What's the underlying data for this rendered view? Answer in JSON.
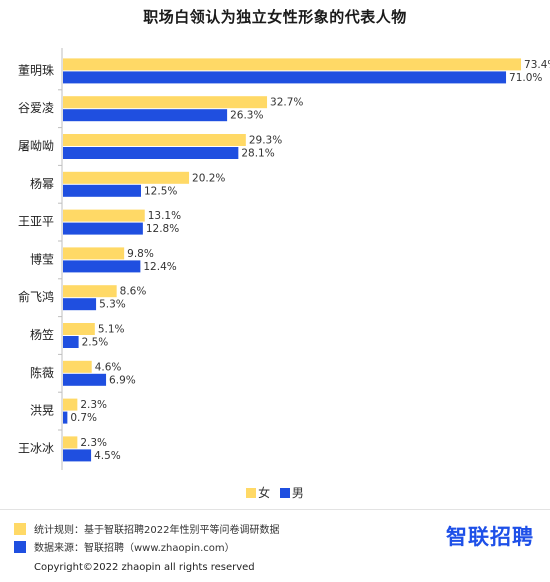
{
  "chart_data": {
    "type": "bar",
    "orientation": "horizontal",
    "title": "职场白领认为独立女性形象的代表人物",
    "categories": [
      "董明珠",
      "谷爱凌",
      "屠呦呦",
      "杨幂",
      "王亚平",
      "博莹",
      "俞飞鸿",
      "杨笠",
      "陈薇",
      "洪晃",
      "王冰冰"
    ],
    "series": [
      {
        "name": "女",
        "color": "#FFD966",
        "values": [
          73.4,
          32.7,
          29.3,
          20.2,
          13.1,
          9.8,
          8.6,
          5.1,
          4.6,
          2.3,
          2.3
        ]
      },
      {
        "name": "男",
        "color": "#1F4FE0",
        "values": [
          71.0,
          26.3,
          28.1,
          12.5,
          12.8,
          12.4,
          5.3,
          2.5,
          6.9,
          0.7,
          4.5
        ]
      }
    ],
    "value_format": "percent-1dp",
    "xlim": [
      0,
      75
    ],
    "grid": false,
    "legend": "bottom-center"
  },
  "notes": [
    {
      "label": "统计规则：基于智联招聘2022年性别平等问卷调研数据",
      "color": "#FFD966"
    },
    {
      "label": "数据来源：智联招聘（www.zhaopin.com）",
      "color": "#1F4FE0"
    }
  ],
  "brand": {
    "name": "智联招聘"
  },
  "footer": {
    "copyright": "Copyright©2022 zhaopin all rights reserved"
  }
}
